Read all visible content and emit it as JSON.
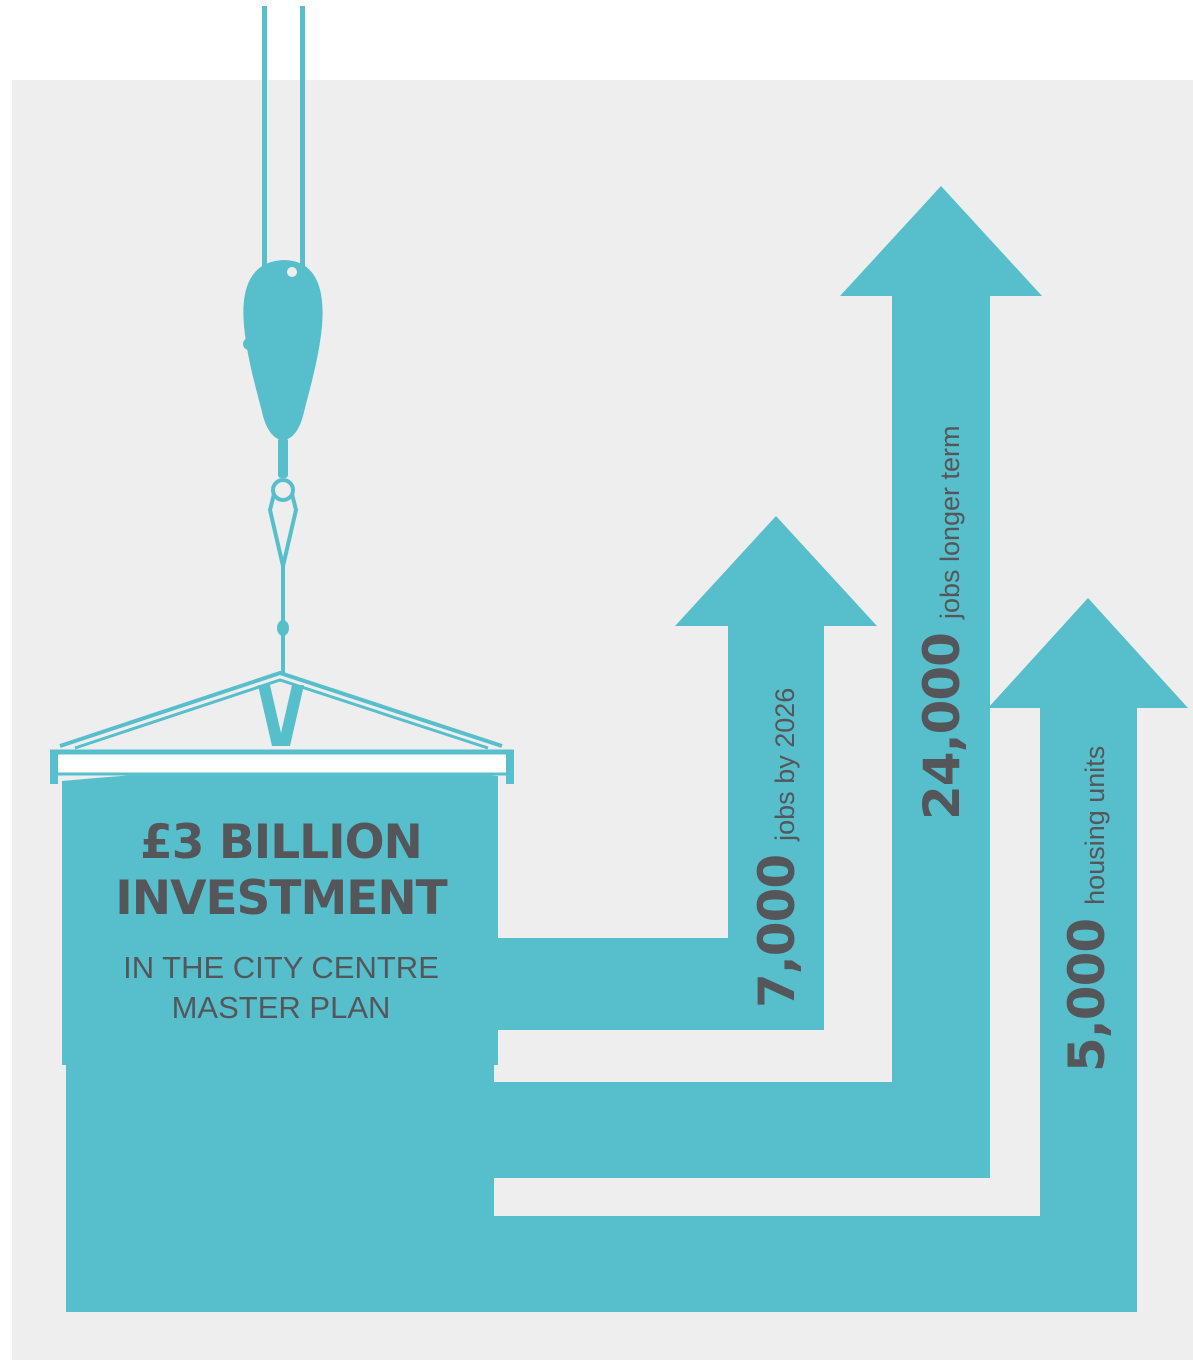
{
  "colors": {
    "background": "#eeeeef",
    "accent": "#57bfcc",
    "text": "#55565a"
  },
  "bucket": {
    "headline": [
      "£3 BILLION",
      "INVESTMENT"
    ],
    "subline": [
      "IN THE CITY CENTRE",
      "MASTER PLAN"
    ]
  },
  "arrows": [
    {
      "value": "7,000",
      "label": "jobs by 2026"
    },
    {
      "value": "24,000",
      "label": "jobs longer term"
    },
    {
      "value": "5,000",
      "label": "housing units"
    }
  ],
  "icons": [
    "crane-hook-icon",
    "bucket-icon",
    "arrow-up-icon"
  ]
}
